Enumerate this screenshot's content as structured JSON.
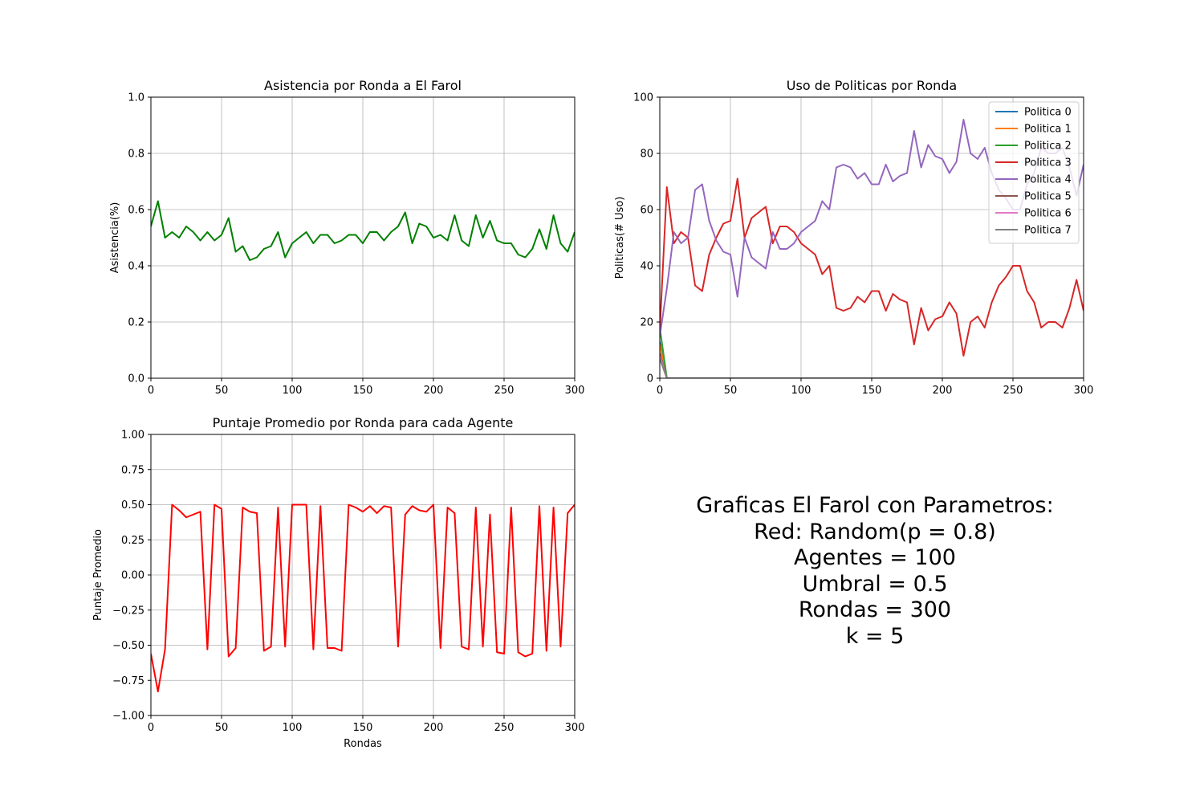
{
  "colors": {
    "attendance": "#008000",
    "score": "#ff0000",
    "grid": "#b0b0b0",
    "policies": [
      "#1f77b4",
      "#ff7f0e",
      "#2ca02c",
      "#d62728",
      "#9467bd",
      "#8c564b",
      "#e377c2",
      "#7f7f7f"
    ]
  },
  "caption": {
    "lines": [
      "Graficas El Farol con Parametros:",
      "Red: Random(p = 0.8)",
      "Agentes = 100",
      "Umbral = 0.5",
      "Rondas = 300",
      "k = 5"
    ]
  },
  "chart_data": [
    {
      "id": "attendance",
      "type": "line",
      "title": "Asistencia por Ronda a El Farol",
      "xlabel": "",
      "ylabel": "Asistencia(%)",
      "xlim": [
        0,
        300
      ],
      "ylim": [
        0,
        1
      ],
      "xticks": [
        0,
        50,
        100,
        150,
        200,
        250,
        300
      ],
      "yticks": [
        0.0,
        0.2,
        0.4,
        0.6,
        0.8,
        1.0
      ],
      "ytick_labels": [
        "0.0",
        "0.2",
        "0.4",
        "0.6",
        "0.8",
        "1.0"
      ],
      "grid": true,
      "series": [
        {
          "x": [
            0,
            5,
            10,
            15,
            20,
            25,
            30,
            35,
            40,
            45,
            50,
            55,
            60,
            65,
            70,
            75,
            80,
            85,
            90,
            95,
            100,
            105,
            110,
            115,
            120,
            125,
            130,
            135,
            140,
            145,
            150,
            155,
            160,
            165,
            170,
            175,
            180,
            185,
            190,
            195,
            200,
            205,
            210,
            215,
            220,
            225,
            230,
            235,
            240,
            245,
            250,
            255,
            260,
            265,
            270,
            275,
            280,
            285,
            290,
            295,
            300
          ],
          "y": [
            0.54,
            0.63,
            0.5,
            0.52,
            0.5,
            0.54,
            0.52,
            0.49,
            0.52,
            0.49,
            0.51,
            0.57,
            0.45,
            0.47,
            0.42,
            0.43,
            0.46,
            0.47,
            0.52,
            0.43,
            0.48,
            0.5,
            0.52,
            0.48,
            0.51,
            0.51,
            0.48,
            0.49,
            0.51,
            0.51,
            0.48,
            0.52,
            0.52,
            0.49,
            0.52,
            0.54,
            0.59,
            0.48,
            0.55,
            0.54,
            0.5,
            0.51,
            0.49,
            0.58,
            0.49,
            0.47,
            0.58,
            0.5,
            0.56,
            0.49,
            0.48,
            0.48,
            0.44,
            0.43,
            0.46,
            0.53,
            0.46,
            0.58,
            0.48,
            0.45,
            0.52
          ]
        }
      ]
    },
    {
      "id": "policies",
      "type": "line",
      "title": "Uso de Politicas por Ronda",
      "xlabel": "",
      "ylabel": "Politicas(# Uso)",
      "xlim": [
        0,
        300
      ],
      "ylim": [
        0,
        100
      ],
      "xticks": [
        0,
        50,
        100,
        150,
        200,
        250,
        300
      ],
      "yticks": [
        0,
        20,
        40,
        60,
        80,
        100
      ],
      "ytick_labels": [
        "0",
        "20",
        "40",
        "60",
        "80",
        "100"
      ],
      "grid": true,
      "legend": "top-right",
      "x": [
        0,
        5,
        10,
        15,
        20,
        25,
        30,
        35,
        40,
        45,
        50,
        55,
        60,
        65,
        70,
        75,
        80,
        85,
        90,
        95,
        100,
        105,
        110,
        115,
        120,
        125,
        130,
        135,
        140,
        145,
        150,
        155,
        160,
        165,
        170,
        175,
        180,
        185,
        190,
        195,
        200,
        205,
        210,
        215,
        220,
        225,
        230,
        235,
        240,
        245,
        250,
        255,
        260,
        265,
        270,
        275,
        280,
        285,
        290,
        295,
        300
      ],
      "series": [
        {
          "name": "Politica 0",
          "x": [
            0,
            5,
            300
          ],
          "y": [
            13,
            0,
            0
          ]
        },
        {
          "name": "Politica 1",
          "x": [
            0,
            5,
            300
          ],
          "y": [
            12,
            0,
            0
          ]
        },
        {
          "name": "Politica 2",
          "x": [
            0,
            5,
            300
          ],
          "y": [
            18,
            0,
            0
          ]
        },
        {
          "name": "Politica 3",
          "y": [
            17,
            68,
            48,
            52,
            50,
            33,
            31,
            44,
            50,
            55,
            56,
            71,
            50,
            57,
            59,
            61,
            48,
            54,
            54,
            52,
            48,
            46,
            44,
            37,
            40,
            25,
            24,
            25,
            29,
            27,
            31,
            31,
            24,
            30,
            28,
            27,
            12,
            25,
            17,
            21,
            22,
            27,
            23,
            8,
            20,
            22,
            18,
            27,
            33,
            36,
            40,
            40,
            31,
            27,
            18,
            20,
            20,
            18,
            25,
            35,
            24
          ]
        },
        {
          "name": "Politica 4",
          "y": [
            15,
            32,
            52,
            48,
            50,
            67,
            69,
            56,
            49,
            45,
            44,
            29,
            50,
            43,
            41,
            39,
            52,
            46,
            46,
            48,
            52,
            54,
            56,
            63,
            60,
            75,
            76,
            75,
            71,
            73,
            69,
            69,
            76,
            70,
            72,
            73,
            88,
            75,
            83,
            79,
            78,
            73,
            77,
            92,
            80,
            78,
            82,
            73,
            67,
            64,
            60,
            60,
            69,
            73,
            82,
            80,
            80,
            82,
            75,
            65,
            76
          ]
        },
        {
          "name": "Politica 5",
          "x": [
            0,
            5,
            300
          ],
          "y": [
            9,
            0,
            0
          ]
        },
        {
          "name": "Politica 6",
          "x": [
            0,
            5,
            300
          ],
          "y": [
            8,
            0,
            0
          ]
        },
        {
          "name": "Politica 7",
          "x": [
            0,
            5,
            300
          ],
          "y": [
            7,
            0,
            0
          ]
        }
      ]
    },
    {
      "id": "score",
      "type": "line",
      "title": "Puntaje Promedio por Ronda para cada Agente",
      "xlabel": "Rondas",
      "ylabel": "Puntaje Promedio",
      "xlim": [
        0,
        300
      ],
      "ylim": [
        -1,
        1
      ],
      "xticks": [
        0,
        50,
        100,
        150,
        200,
        250,
        300
      ],
      "yticks": [
        -1.0,
        -0.75,
        -0.5,
        -0.25,
        0.0,
        0.25,
        0.5,
        0.75,
        1.0
      ],
      "ytick_labels": [
        "−1.00",
        "−0.75",
        "−0.50",
        "−0.25",
        "0.00",
        "0.25",
        "0.50",
        "0.75",
        "1.00"
      ],
      "grid": true,
      "series": [
        {
          "x": [
            0,
            5,
            10,
            15,
            20,
            25,
            30,
            35,
            40,
            45,
            50,
            55,
            60,
            65,
            70,
            75,
            80,
            85,
            90,
            95,
            100,
            105,
            110,
            115,
            120,
            125,
            130,
            135,
            140,
            145,
            150,
            155,
            160,
            165,
            170,
            175,
            180,
            185,
            190,
            195,
            200,
            205,
            210,
            215,
            220,
            225,
            230,
            235,
            240,
            245,
            250,
            255,
            260,
            265,
            270,
            275,
            280,
            285,
            290,
            295,
            300
          ],
          "y": [
            -0.56,
            -0.83,
            -0.53,
            0.5,
            0.46,
            0.41,
            0.43,
            0.45,
            -0.53,
            0.5,
            0.47,
            -0.58,
            -0.52,
            0.48,
            0.45,
            0.44,
            -0.54,
            -0.51,
            0.48,
            -0.51,
            0.5,
            0.5,
            0.5,
            -0.53,
            0.49,
            -0.52,
            -0.52,
            -0.54,
            0.5,
            0.48,
            0.45,
            0.49,
            0.44,
            0.49,
            0.48,
            -0.51,
            0.43,
            0.49,
            0.46,
            0.45,
            0.5,
            -0.52,
            0.48,
            0.44,
            -0.51,
            -0.53,
            0.48,
            -0.51,
            0.43,
            -0.55,
            -0.56,
            0.48,
            -0.55,
            -0.58,
            -0.56,
            0.49,
            -0.54,
            0.48,
            -0.51,
            0.44,
            0.5
          ]
        }
      ]
    }
  ]
}
